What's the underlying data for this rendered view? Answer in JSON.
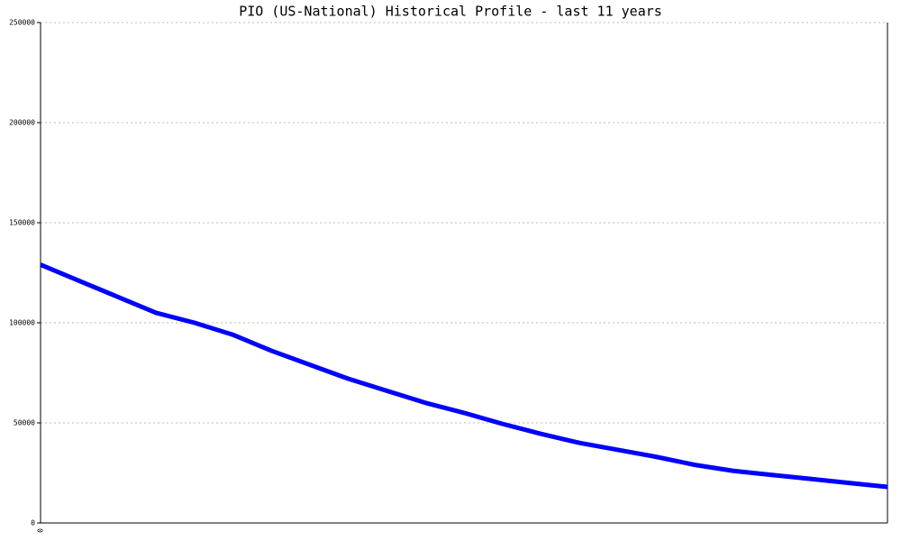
{
  "chart_data": {
    "type": "line",
    "title": "PIO (US-National) Historical Profile - last 11 years",
    "categories": [
      "0",
      null,
      null,
      null,
      null,
      null,
      null,
      null,
      null,
      null,
      null,
      null,
      null,
      null,
      null,
      null,
      null,
      null,
      null,
      null,
      null,
      null,
      null
    ],
    "series": [
      {
        "name": "PIO",
        "color": "#0000ff",
        "values": [
          129000,
          121000,
          113000,
          105000,
          100000,
          94000,
          86000,
          79000,
          72000,
          66000,
          60000,
          55000,
          49500,
          44500,
          40000,
          36500,
          33000,
          29000,
          26000,
          24000,
          22000,
          20000,
          18000
        ]
      }
    ],
    "ylim": [
      0,
      250000
    ],
    "yticks": [
      0,
      50000,
      100000,
      150000,
      200000,
      250000
    ],
    "grid": true
  }
}
